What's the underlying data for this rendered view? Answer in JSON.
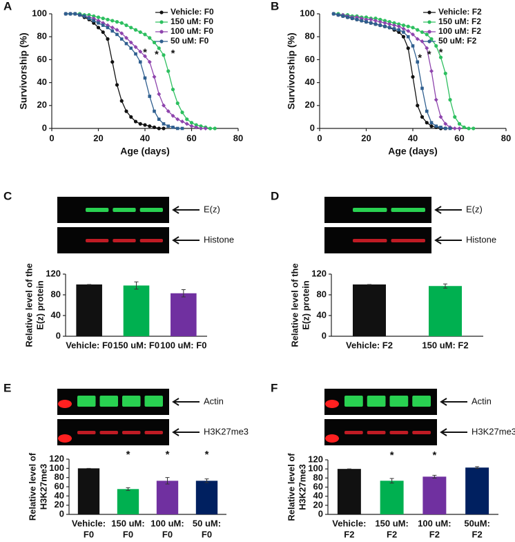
{
  "chart_data": [
    {
      "type": "line",
      "panel": "A",
      "xlabel": "Age (days)",
      "ylabel": "Survivorship (%)",
      "xlim": [
        0,
        80
      ],
      "xticks": [
        0,
        20,
        40,
        60,
        80
      ],
      "ylim": [
        0,
        100
      ],
      "yticks": [
        0,
        20,
        40,
        60,
        80,
        100
      ],
      "legend": "upper right",
      "x": [
        6,
        8,
        10,
        12,
        14,
        16,
        18,
        20,
        22,
        24,
        26,
        28,
        30,
        32,
        34,
        36,
        38,
        40,
        42,
        44,
        46,
        48,
        50,
        52,
        54,
        56,
        58,
        60,
        62,
        64,
        66,
        68,
        70
      ],
      "series": [
        {
          "name": "Vehicle: F0",
          "color": "#111111",
          "marker": "circle",
          "values": [
            100,
            100,
            100,
            99,
            97,
            95,
            92,
            88,
            84,
            78,
            58,
            38,
            24,
            15,
            10,
            6,
            4,
            3,
            2,
            1,
            0,
            0,
            null,
            null,
            null,
            null,
            null,
            null,
            null,
            null,
            null,
            null,
            null
          ]
        },
        {
          "name": "150 uM: F0",
          "color": "#2dbf5f",
          "marker": "circle",
          "values": [
            100,
            100,
            100,
            100,
            99,
            99,
            98,
            97,
            96,
            95,
            94,
            93,
            92,
            90,
            88,
            86,
            84,
            82,
            79,
            75,
            70,
            64,
            50,
            34,
            22,
            14,
            8,
            5,
            3,
            2,
            1,
            0,
            0
          ]
        },
        {
          "name": "100 uM: F0",
          "color": "#8e44ad",
          "marker": "diamond",
          "values": [
            100,
            100,
            100,
            99,
            98,
            97,
            96,
            94,
            92,
            90,
            88,
            86,
            83,
            79,
            75,
            71,
            67,
            63,
            58,
            45,
            30,
            20,
            15,
            11,
            8,
            6,
            4,
            2,
            1,
            0,
            0,
            null,
            null
          ]
        },
        {
          "name": "50 uM: F0",
          "color": "#2f5f8f",
          "marker": "square",
          "values": [
            100,
            100,
            100,
            99,
            98,
            96,
            94,
            92,
            90,
            88,
            85,
            82,
            78,
            74,
            70,
            65,
            58,
            44,
            28,
            15,
            8,
            4,
            2,
            1,
            0,
            0,
            null,
            null,
            null,
            null,
            null,
            null,
            null
          ]
        }
      ],
      "annotations": [
        {
          "text": "*",
          "x": 40,
          "y": 66
        },
        {
          "text": "*",
          "x": 45,
          "y": 64
        },
        {
          "text": "*",
          "x": 52,
          "y": 65
        }
      ]
    },
    {
      "type": "line",
      "panel": "B",
      "xlabel": "Age (days)",
      "ylabel": "Survivorship (%)",
      "xlim": [
        0,
        80
      ],
      "xticks": [
        0,
        20,
        40,
        60,
        80
      ],
      "ylim": [
        0,
        100
      ],
      "yticks": [
        0,
        20,
        40,
        60,
        80,
        100
      ],
      "legend": "upper right",
      "x": [
        6,
        8,
        10,
        12,
        14,
        16,
        18,
        20,
        22,
        24,
        26,
        28,
        30,
        32,
        34,
        36,
        38,
        40,
        42,
        44,
        46,
        48,
        50,
        52,
        54,
        56,
        58,
        60,
        62,
        64,
        66
      ],
      "series": [
        {
          "name": "Vehicle: F2",
          "color": "#111111",
          "marker": "circle",
          "values": [
            100,
            99,
            98,
            97,
            96,
            95,
            94,
            93,
            92,
            91,
            90,
            89,
            88,
            86,
            84,
            80,
            70,
            45,
            20,
            10,
            5,
            2,
            1,
            0,
            0,
            null,
            null,
            null,
            null,
            null,
            null
          ]
        },
        {
          "name": "150 uM: F2",
          "color": "#2dbf5f",
          "marker": "circle",
          "values": [
            100,
            100,
            99,
            99,
            98,
            98,
            97,
            97,
            96,
            96,
            95,
            94,
            93,
            92,
            91,
            90,
            89,
            88,
            86,
            84,
            82,
            78,
            72,
            62,
            48,
            25,
            10,
            4,
            1,
            0,
            0
          ]
        },
        {
          "name": "100 uM: F2",
          "color": "#8e44ad",
          "marker": "diamond",
          "values": [
            100,
            99,
            99,
            98,
            97,
            97,
            96,
            95,
            95,
            94,
            93,
            92,
            91,
            90,
            89,
            87,
            85,
            82,
            78,
            76,
            70,
            50,
            25,
            10,
            4,
            1,
            0,
            0,
            null,
            null,
            null
          ]
        },
        {
          "name": "50 uM: F2",
          "color": "#2f5f8f",
          "marker": "square",
          "values": [
            100,
            99,
            98,
            97,
            96,
            95,
            94,
            93,
            92,
            91,
            90,
            89,
            88,
            87,
            86,
            84,
            80,
            72,
            58,
            35,
            15,
            5,
            2,
            1,
            0,
            0,
            null,
            null,
            null,
            null,
            null
          ]
        }
      ],
      "annotations": [
        {
          "text": "*",
          "x": 43,
          "y": 61
        },
        {
          "text": "*",
          "x": 47,
          "y": 64
        },
        {
          "text": "*",
          "x": 52,
          "y": 66
        }
      ]
    },
    {
      "type": "bar",
      "panel": "C",
      "blot_labels": [
        "E(z)",
        "Histone"
      ],
      "ylabel": [
        "Relative level of the",
        "E(z) protein"
      ],
      "ylim": [
        0,
        120
      ],
      "yticks": [
        0,
        40,
        80,
        120
      ],
      "categories": [
        [
          "Vehicle: F0"
        ],
        [
          "150 uM: F0"
        ],
        [
          "100 uM: F0"
        ]
      ],
      "values": [
        100,
        98,
        83
      ],
      "errors": [
        0,
        7,
        7
      ],
      "colors": [
        "#111111",
        "#00b050",
        "#7030a0"
      ],
      "annotations": []
    },
    {
      "type": "bar",
      "panel": "D",
      "blot_labels": [
        "E(z)",
        "Histone"
      ],
      "ylabel": [
        "Relative level of the",
        "E(z) protein"
      ],
      "ylim": [
        0,
        120
      ],
      "yticks": [
        0,
        40,
        80,
        120
      ],
      "categories": [
        [
          "Vehicle: F2"
        ],
        [
          "150 uM: F2"
        ]
      ],
      "values": [
        100,
        97
      ],
      "errors": [
        0,
        4
      ],
      "colors": [
        "#111111",
        "#00b050"
      ],
      "annotations": []
    },
    {
      "type": "bar",
      "panel": "E",
      "blot_labels": [
        "Actin",
        "H3K27me3"
      ],
      "ylabel": [
        "Relative level of",
        "H3K27me3"
      ],
      "ylim": [
        0,
        120
      ],
      "yticks": [
        0,
        20,
        40,
        60,
        80,
        100,
        120
      ],
      "categories": [
        [
          "Vehicle:",
          "F0"
        ],
        [
          "150 uM:",
          "F0"
        ],
        [
          "100 uM:",
          "F0"
        ],
        [
          "50 uM:",
          "F0"
        ]
      ],
      "values": [
        100,
        55,
        73,
        73
      ],
      "errors": [
        0,
        3,
        7,
        4
      ],
      "colors": [
        "#111111",
        "#00b050",
        "#7030a0",
        "#002060"
      ],
      "annotations": [
        {
          "text": "*",
          "index": 1
        },
        {
          "text": "*",
          "index": 2
        },
        {
          "text": "*",
          "index": 3
        }
      ]
    },
    {
      "type": "bar",
      "panel": "F",
      "blot_labels": [
        "Actin",
        "H3K27me3"
      ],
      "ylabel": [
        "Relative level of",
        "H3K27me3"
      ],
      "ylim": [
        0,
        120
      ],
      "yticks": [
        0,
        20,
        40,
        60,
        80,
        100,
        120
      ],
      "categories": [
        [
          "Vehicle:",
          "F2"
        ],
        [
          "150 uM:",
          "F2"
        ],
        [
          "100 uM:",
          "F2"
        ],
        [
          "50uM:",
          "F2"
        ]
      ],
      "values": [
        100,
        74,
        83,
        103
      ],
      "errors": [
        0,
        5,
        3,
        2
      ],
      "colors": [
        "#111111",
        "#00b050",
        "#7030a0",
        "#002060"
      ],
      "annotations": [
        {
          "text": "*",
          "index": 1
        },
        {
          "text": "*",
          "index": 2
        }
      ]
    }
  ]
}
